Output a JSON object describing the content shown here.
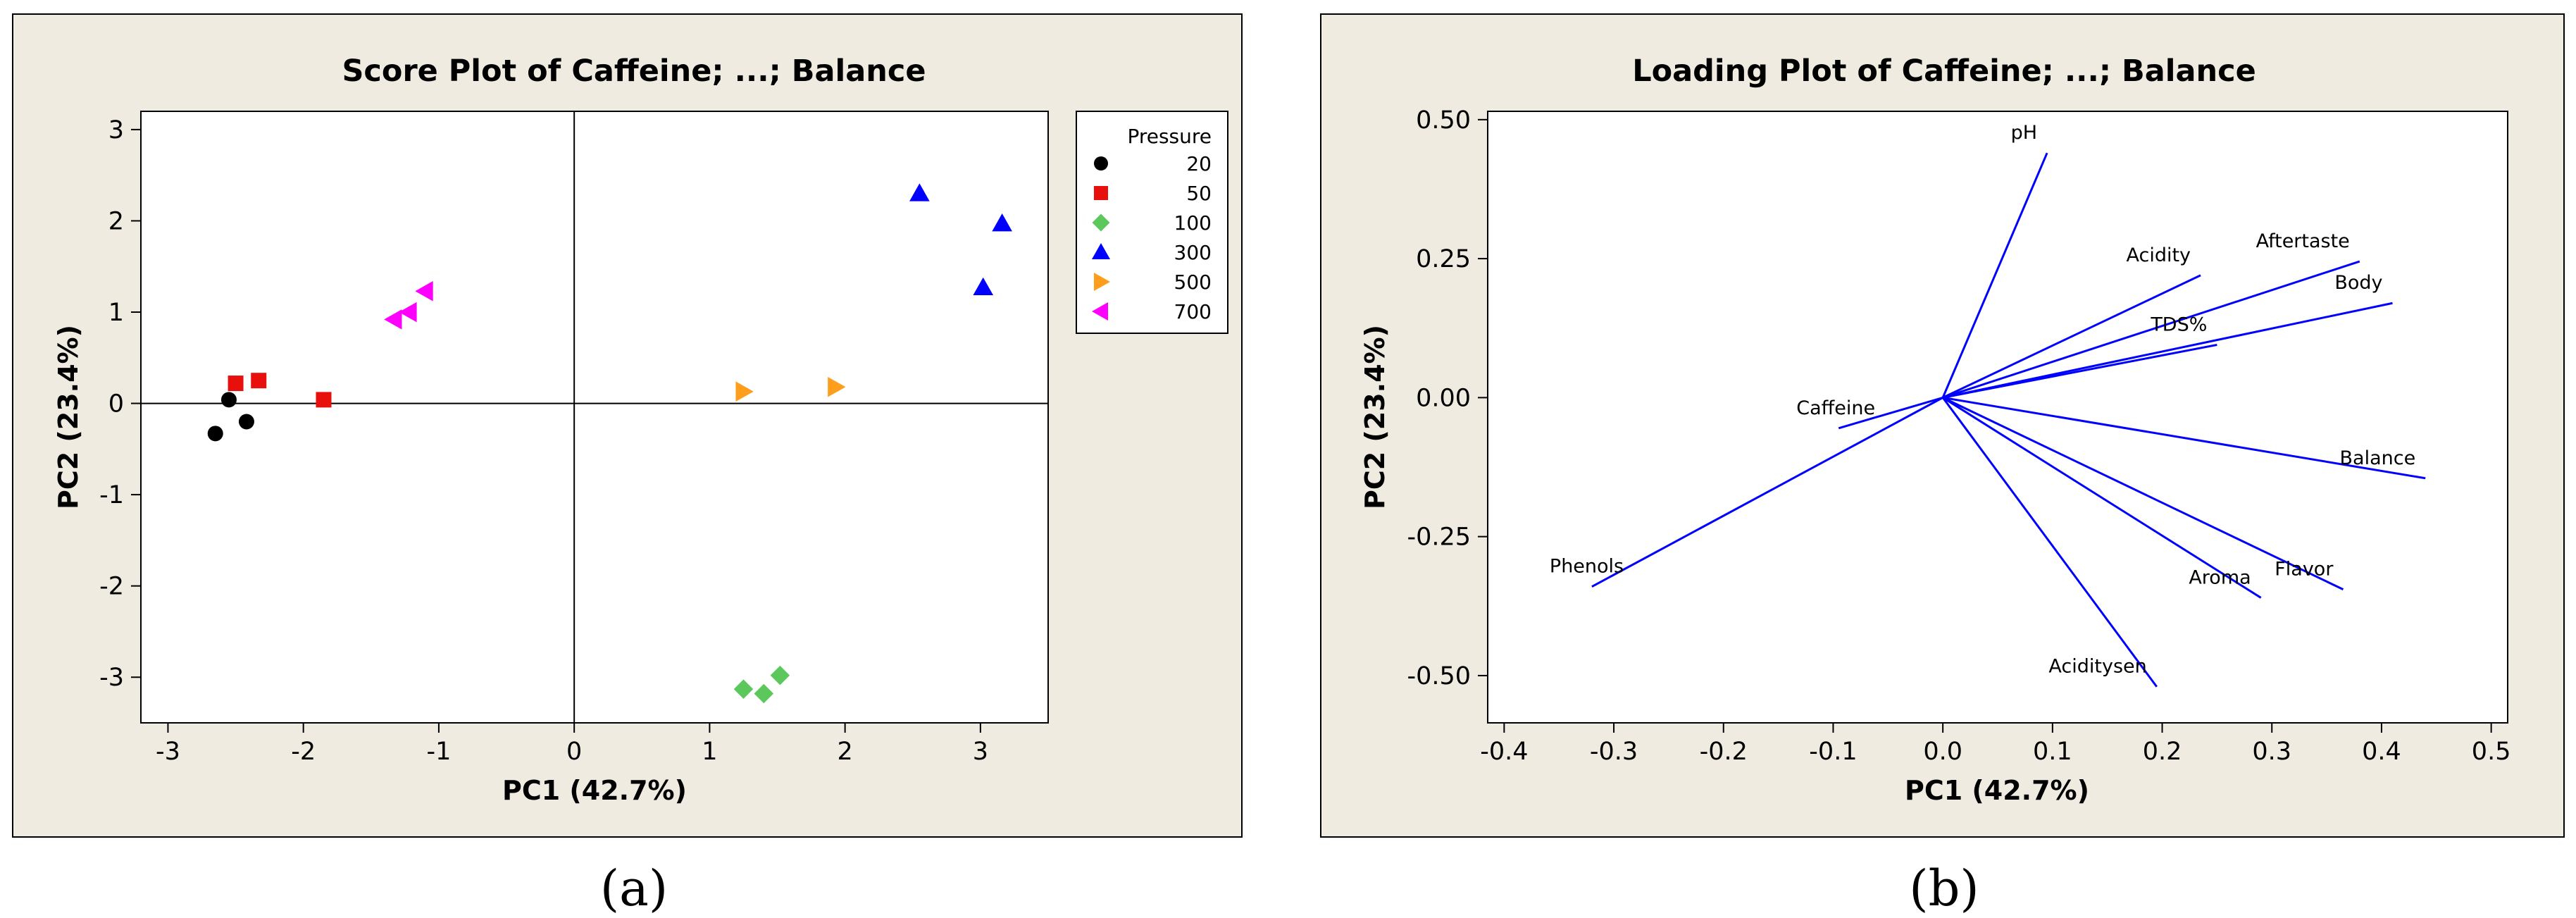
{
  "colors": {
    "p20": "#000000",
    "p50": "#e8100c",
    "p100": "#5cc85c",
    "p300": "#0000ff",
    "p500": "#ff9d1c",
    "p700": "#ff00ff",
    "loading_line": "#0000ff"
  },
  "chart_data": [
    {
      "type": "scatter",
      "panel_label": "(a)",
      "title": "Score Plot of Caffeine; ...; Balance",
      "xlabel": "PC1 (42.7%)",
      "ylabel": "PC2 (23.4%)",
      "xlim": [
        -3.2,
        3.5
      ],
      "ylim": [
        -3.5,
        3.2
      ],
      "xticks": [
        -3,
        -2,
        -1,
        0,
        1,
        2,
        3
      ],
      "yticks": [
        -3,
        -2,
        -1,
        0,
        1,
        2,
        3
      ],
      "legend": {
        "title": "Pressure",
        "position": "right"
      },
      "series": [
        {
          "name": "20",
          "marker": "circle",
          "color_key": "p20",
          "x": [
            -2.65,
            -2.55,
            -2.42
          ],
          "y": [
            -0.33,
            0.04,
            -0.2
          ]
        },
        {
          "name": "50",
          "marker": "square",
          "color_key": "p50",
          "x": [
            -2.5,
            -2.33,
            -1.85
          ],
          "y": [
            0.22,
            0.25,
            0.04
          ]
        },
        {
          "name": "100",
          "marker": "diamond",
          "color_key": "p100",
          "x": [
            1.25,
            1.4,
            1.52
          ],
          "y": [
            -3.13,
            -3.18,
            -2.98
          ]
        },
        {
          "name": "300",
          "marker": "triangle-up",
          "color_key": "p300",
          "x": [
            2.55,
            3.02,
            3.16
          ],
          "y": [
            2.3,
            1.27,
            1.97
          ]
        },
        {
          "name": "500",
          "marker": "triangle-right",
          "color_key": "p500",
          "x": [
            1.25,
            1.93
          ],
          "y": [
            0.13,
            0.18
          ]
        },
        {
          "name": "700",
          "marker": "triangle-left",
          "color_key": "p700",
          "x": [
            -1.33,
            -1.22,
            -1.1
          ],
          "y": [
            0.92,
            1.0,
            1.23
          ]
        }
      ]
    },
    {
      "type": "line",
      "panel_label": "(b)",
      "title": "Loading Plot of Caffeine; ...; Balance",
      "xlabel": "PC1 (42.7%)",
      "ylabel": "PC2 (23.4%)",
      "xlim": [
        -0.415,
        0.515
      ],
      "ylim": [
        -0.585,
        0.515
      ],
      "xticks": [
        -0.4,
        -0.3,
        -0.2,
        -0.1,
        0.0,
        0.1,
        0.2,
        0.3,
        0.4,
        0.5
      ],
      "xtick_labels": [
        "-0.4",
        "-0.3",
        "-0.2",
        "-0.1",
        "0.0",
        "0.1",
        "0.2",
        "0.3",
        "0.4",
        "0.5"
      ],
      "yticks": [
        0.5,
        0.25,
        0.0,
        -0.25,
        -0.5
      ],
      "ytick_labels": [
        "0.50",
        "0.25",
        "0.00",
        "-0.25",
        "-0.50"
      ],
      "vectors": [
        {
          "name": "pH",
          "x": 0.095,
          "y": 0.44
        },
        {
          "name": "Acidity",
          "x": 0.235,
          "y": 0.22
        },
        {
          "name": "Aftertaste",
          "x": 0.38,
          "y": 0.245
        },
        {
          "name": "Body",
          "x": 0.41,
          "y": 0.17
        },
        {
          "name": "TDS%",
          "x": 0.25,
          "y": 0.095
        },
        {
          "name": "Caffeine",
          "x": -0.095,
          "y": -0.055
        },
        {
          "name": "Balance",
          "x": 0.44,
          "y": -0.145
        },
        {
          "name": "Flavor",
          "x": 0.365,
          "y": -0.345
        },
        {
          "name": "Aroma",
          "x": 0.29,
          "y": -0.36
        },
        {
          "name": "Aciditysen",
          "x": 0.195,
          "y": -0.52
        },
        {
          "name": "Phenols",
          "x": -0.32,
          "y": -0.34
        }
      ]
    }
  ]
}
